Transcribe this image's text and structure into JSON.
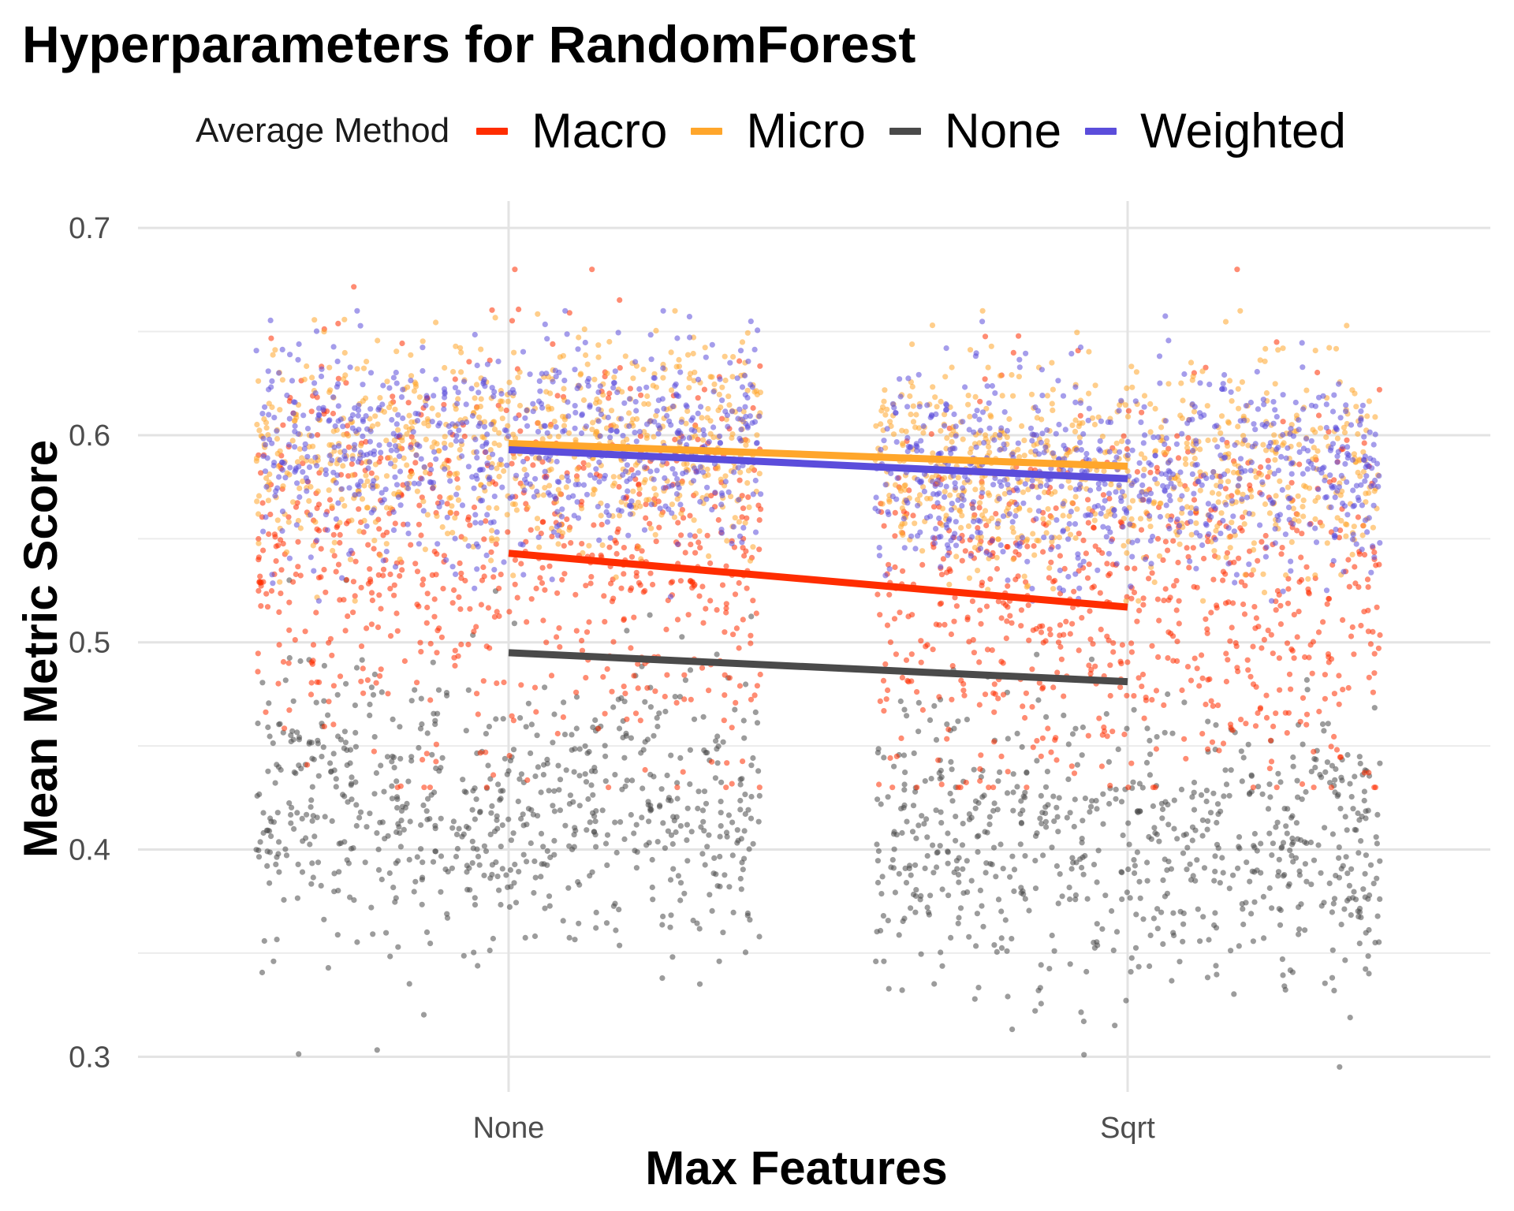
{
  "chart_data": {
    "type": "scatter",
    "title": "Hyperparameters for RandomForest",
    "xlabel": "Max Features",
    "ylabel": "Mean Metric Score",
    "categories": [
      "None",
      "Sqrt"
    ],
    "ylim": [
      0.283,
      0.713
    ],
    "yticks": [
      "0.3",
      "0.4",
      "0.5",
      "0.6",
      "0.7"
    ],
    "ytick_values": [
      0.3,
      0.4,
      0.5,
      0.6,
      0.7
    ],
    "grid": true,
    "legend": {
      "title": "Average Method",
      "placement": "top"
    },
    "series": [
      {
        "name": "Macro",
        "color": "#FF2D00",
        "trend": [
          0.543,
          0.517
        ],
        "points_center": [
          0.543,
          0.517
        ],
        "points_spread": 0.045,
        "points_range": [
          0.43,
          0.68
        ]
      },
      {
        "name": "Micro",
        "color": "#FFA62B",
        "trend": [
          0.596,
          0.585
        ],
        "points_center": [
          0.596,
          0.585
        ],
        "points_spread": 0.025,
        "points_range": [
          0.52,
          0.66
        ]
      },
      {
        "name": "None",
        "color": "#4A4A4A",
        "trend": [
          0.495,
          0.481
        ],
        "points_center": [
          0.42,
          0.4
        ],
        "points_spread": 0.035,
        "points_range": [
          0.29,
          0.53
        ]
      },
      {
        "name": "Weighted",
        "color": "#5B4DDB",
        "trend": [
          0.593,
          0.579
        ],
        "points_center": [
          0.593,
          0.579
        ],
        "points_spread": 0.025,
        "points_range": [
          0.52,
          0.66
        ]
      }
    ]
  }
}
